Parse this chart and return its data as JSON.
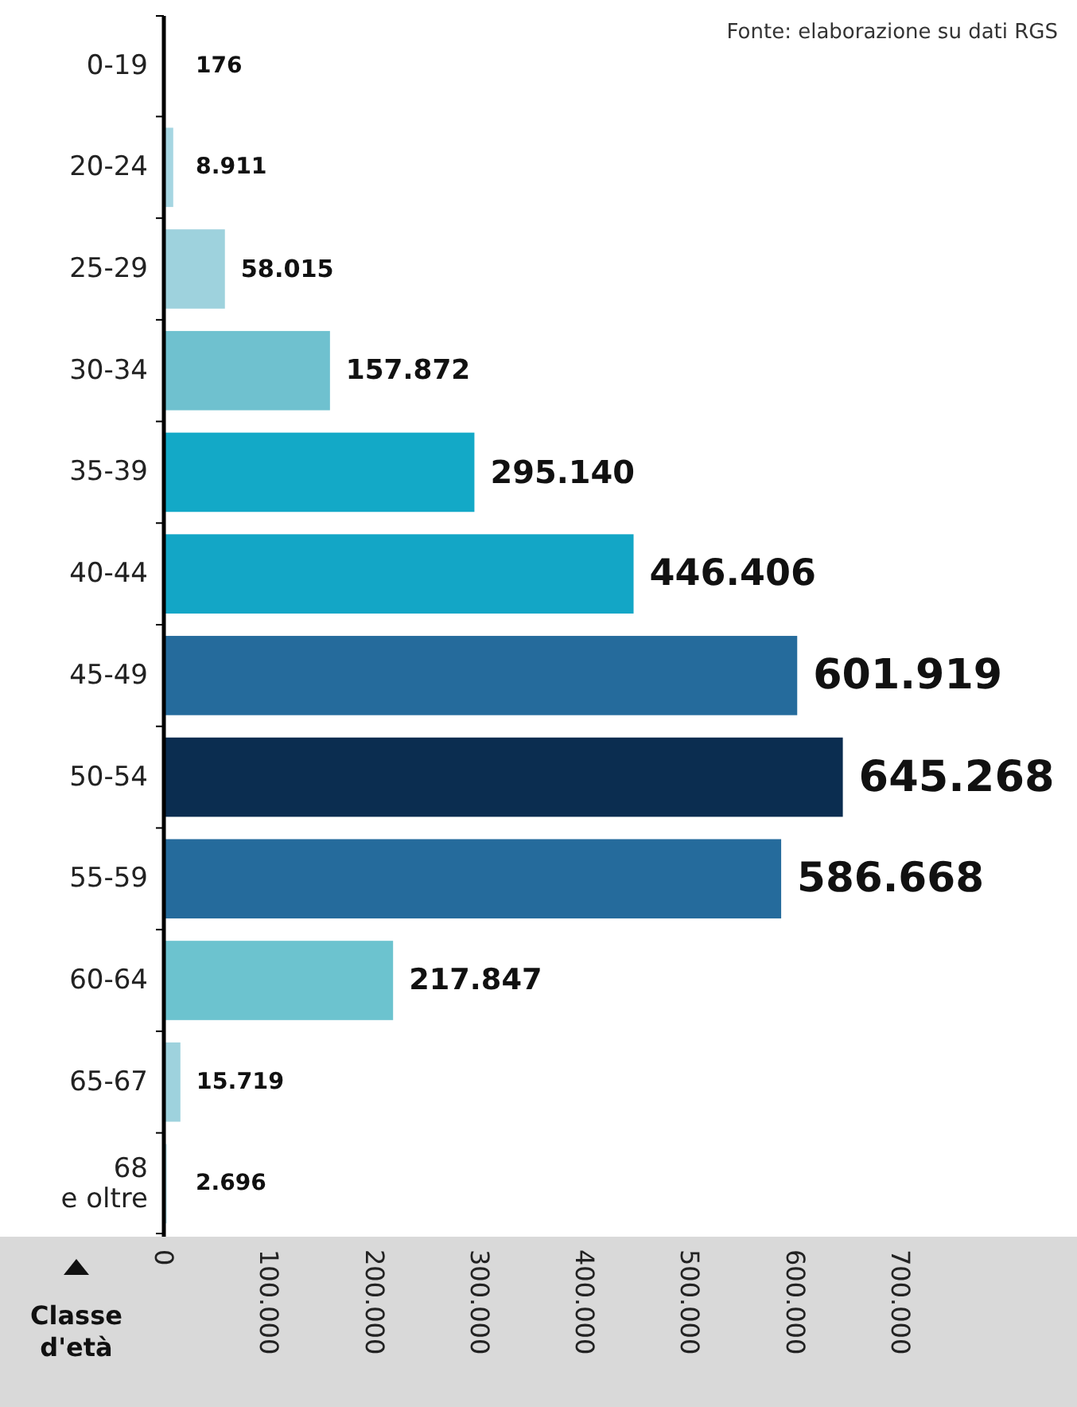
{
  "chart_data": {
    "type": "bar",
    "orientation": "horizontal",
    "ylabel": "Classe d'età",
    "categories": [
      "0-19",
      "20-24",
      "25-29",
      "30-34",
      "35-39",
      "40-44",
      "45-49",
      "50-54",
      "55-59",
      "60-64",
      "65-67",
      "68 e oltre"
    ],
    "values": [
      176,
      8911,
      58015,
      157872,
      295140,
      446406,
      601919,
      645268,
      586668,
      217847,
      15719,
      2696
    ],
    "value_labels": [
      "176",
      "8.911",
      "58.015",
      "157.872",
      "295.140",
      "446.406",
      "601.919",
      "645.268",
      "586.668",
      "217.847",
      "15.719",
      "2.696"
    ],
    "colors": [
      "#b3dde6",
      "#a6d6e2",
      "#9ed2dd",
      "#6fc1cf",
      "#13a9c7",
      "#13a6c6",
      "#256b9c",
      "#0b2d50",
      "#256b9c",
      "#6cc3cf",
      "#9ed2dd",
      "#b3dde6"
    ],
    "xlim": [
      0,
      700000
    ],
    "xticks": [
      {
        "value": 0,
        "label": "0"
      },
      {
        "value": 100000,
        "label": "100.000"
      },
      {
        "value": 200000,
        "label": "200.000"
      },
      {
        "value": 300000,
        "label": "300.000"
      },
      {
        "value": 400000,
        "label": "400.000"
      },
      {
        "value": 500000,
        "label": "500.000"
      },
      {
        "value": 600000,
        "label": "600.000"
      },
      {
        "value": 700000,
        "label": "700.000"
      }
    ],
    "annotations": [
      "Fonte: elaborazione su dati RGS"
    ],
    "grid": false
  }
}
